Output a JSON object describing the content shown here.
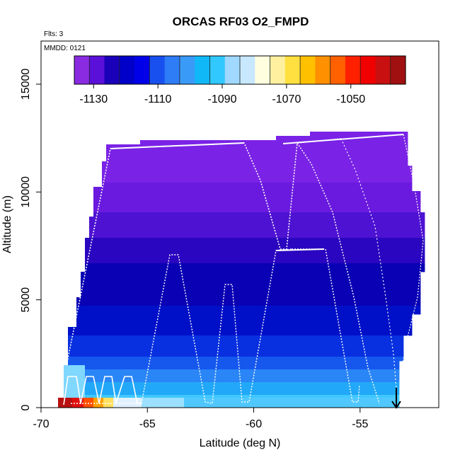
{
  "chart_data": {
    "type": "heatmap",
    "title": "ORCAS RF03 O2_FMPD",
    "flights_note": "Flts: 3",
    "date_note": "MMDD: 0121",
    "xlabel": "Latitude (deg N)",
    "ylabel": "Altitude (m)",
    "xlim": [
      -70,
      -51.3
    ],
    "ylim": [
      0,
      17000
    ],
    "x_ticks": [
      "-70",
      "-65",
      "-60",
      "-55"
    ],
    "x_tick_values": [
      -70,
      -65,
      -60,
      -55
    ],
    "y_ticks": [
      "0",
      "5000",
      "10000",
      "15000"
    ],
    "y_tick_values": [
      0,
      5000,
      10000,
      15000
    ],
    "colorbar": {
      "range": [
        -1136,
        -1033
      ],
      "tick_labels": [
        "-1130",
        "-1110",
        "-1090",
        "-1070",
        "-1050"
      ],
      "tick_values": [
        -1130,
        -1110,
        -1090,
        -1070,
        -1050
      ],
      "colors": [
        "#8A2BE2",
        "#5A10D8",
        "#1A00B8",
        "#0000C8",
        "#0000E8",
        "#1850F0",
        "#2E7CF6",
        "#3A9AF8",
        "#10B8F8",
        "#30C8FF",
        "#A0D8FF",
        "#C8E8FF",
        "#FFFFE0",
        "#FFF0A0",
        "#FFE040",
        "#FFC000",
        "#FF9000",
        "#FF6000",
        "#FF2000",
        "#F00000",
        "#C81010",
        "#A01010"
      ]
    },
    "grid": false,
    "legend": "colorbar top"
  }
}
